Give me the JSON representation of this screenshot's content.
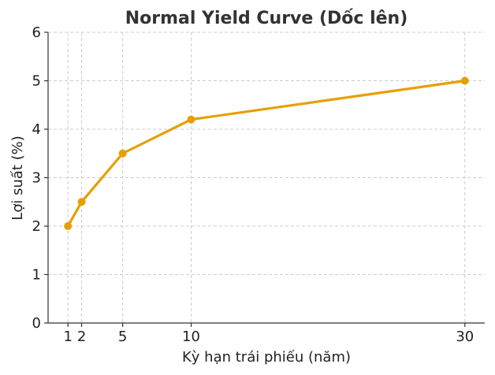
{
  "chart_data": {
    "type": "line",
    "title": "Normal Yield Curve (Dốc lên)",
    "xlabel": "Kỳ hạn trái phiếu (năm)",
    "ylabel": "Lợi suất (%)",
    "x": [
      1,
      2,
      5,
      10,
      30
    ],
    "xticks": [
      1,
      2,
      5,
      10,
      30
    ],
    "yticks": [
      0,
      1,
      2,
      3,
      4,
      5,
      6
    ],
    "xlim": [
      -0.45,
      31.45
    ],
    "ylim": [
      0,
      6
    ],
    "grid": true,
    "series": [
      {
        "values": [
          2.0,
          2.5,
          3.5,
          4.2,
          5.0
        ],
        "color": "#e69f00"
      }
    ]
  }
}
